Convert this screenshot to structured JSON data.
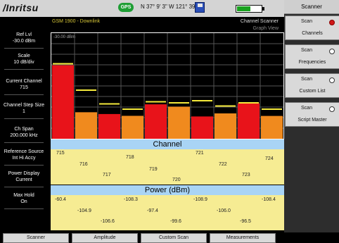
{
  "header": {
    "logo": "/Inritsu",
    "gps_label": "GPS",
    "coordinates": "N 37° 9' 3\" W 121° 39' 5\"",
    "battery_level_fraction": 0.55
  },
  "graph": {
    "band": "GSM 1900 - Downlink",
    "mode_title": "Channel Scanner",
    "mode_sub": "Graph View",
    "ref_label": "-30.00 dBm"
  },
  "left_panel": {
    "items": [
      {
        "label": "Ref Lvl",
        "value": "-30.0 dBm"
      },
      {
        "label": "Scale",
        "value": "10 dB/div"
      },
      {
        "label": "Current Channel",
        "value": "715"
      },
      {
        "label": "Channel Step Size",
        "value": "1"
      },
      {
        "label": "Ch Span",
        "value": "200.000 kHz"
      },
      {
        "label": "Reference Source",
        "value": "Int Hi Accy"
      },
      {
        "label": "Power Display",
        "value": "Current"
      },
      {
        "label": "Max Hold",
        "value": "On"
      }
    ]
  },
  "chart_data": {
    "type": "bar",
    "categories": [
      "715",
      "716",
      "717",
      "718",
      "719",
      "720",
      "721",
      "722",
      "723",
      "724"
    ],
    "values": [
      -60.4,
      -104.9,
      -106.6,
      -108.3,
      -97.4,
      -99.6,
      -108.9,
      -106.0,
      -96.5,
      -108.4
    ],
    "max_hold": [
      -59.0,
      -84.0,
      -97.0,
      -102.0,
      -95.0,
      -96.0,
      -94.0,
      -99.0,
      -96.0,
      -102.0
    ],
    "colors": [
      "#e8131a",
      "#f08a1e",
      "#e8131a",
      "#f08a1e",
      "#e8131a",
      "#f08a1e",
      "#e8131a",
      "#f08a1e",
      "#e8131a",
      "#f08a1e"
    ],
    "ylim": [
      -130,
      -30
    ],
    "title": "",
    "xlabel": "",
    "ylabel": ""
  },
  "channel_band": {
    "title": "Channel",
    "values": [
      "715",
      "716",
      "717",
      "718",
      "719",
      "720",
      "721",
      "722",
      "723",
      "724"
    ]
  },
  "power_band": {
    "title": "Power (dBm)",
    "values": [
      "-60.4",
      "-104.9",
      "-106.6",
      "-108.3",
      "-97.4",
      "-99.6",
      "-108.9",
      "-106.0",
      "-96.5",
      "-108.4"
    ]
  },
  "softkeys": {
    "title": "Scanner",
    "items": [
      {
        "line1": "Scan",
        "line2": "Channels",
        "selected": true
      },
      {
        "line1": "Scan",
        "line2": "Frequencies",
        "selected": false
      },
      {
        "line1": "Scan",
        "line2": "Custom List",
        "selected": false
      },
      {
        "line1": "Scan",
        "line2": "Script Master",
        "selected": false
      }
    ]
  },
  "bottom_tabs": [
    "Scanner",
    "Amplitude",
    "Custom Scan",
    "Measurements"
  ]
}
